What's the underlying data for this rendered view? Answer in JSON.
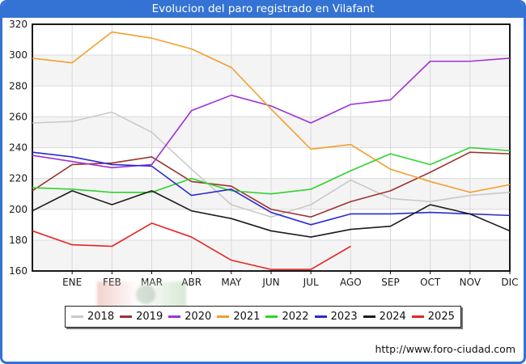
{
  "chart_data": {
    "type": "line",
    "title": "Evolucion del paro registrado en Vilafant",
    "xlabel": "",
    "ylabel": "",
    "ylim": [
      160,
      320
    ],
    "yticks": [
      320,
      300,
      280,
      260,
      240,
      220,
      200,
      180,
      160
    ],
    "categories": [
      "ENE",
      "FEB",
      "MAR",
      "ABR",
      "MAY",
      "JUN",
      "JUL",
      "AGO",
      "SEP",
      "OCT",
      "NOV",
      "DIC"
    ],
    "grid": true,
    "legend_position": "bottom",
    "band_fill_ranges": [
      [
        300,
        280
      ],
      [
        260,
        240
      ],
      [
        220,
        200
      ],
      [
        180,
        160
      ]
    ],
    "series": [
      {
        "name": "2018",
        "color": "#c9c9c9",
        "start_value": 256,
        "values": [
          257,
          263,
          250,
          226,
          203,
          195,
          203,
          219,
          207,
          205,
          209,
          211
        ]
      },
      {
        "name": "2019",
        "color": "#9e3232",
        "start_value": 212,
        "values": [
          229,
          230,
          234,
          218,
          215,
          200,
          195,
          205,
          212,
          224,
          237,
          236
        ]
      },
      {
        "name": "2020",
        "color": "#9d33d6",
        "start_value": 235,
        "values": [
          231,
          227,
          229,
          264,
          274,
          267,
          256,
          268,
          271,
          296,
          296,
          298
        ]
      },
      {
        "name": "2021",
        "color": "#f2a02e",
        "start_value": 298,
        "values": [
          295,
          315,
          311,
          304,
          292,
          265,
          239,
          242,
          226,
          218,
          211,
          216
        ]
      },
      {
        "name": "2022",
        "color": "#2fd32f",
        "start_value": 214,
        "values": [
          213,
          211,
          211,
          220,
          212,
          210,
          213,
          225,
          236,
          229,
          240,
          238
        ]
      },
      {
        "name": "2023",
        "color": "#2a2ad0",
        "start_value": 237,
        "values": [
          234,
          229,
          228,
          209,
          213,
          198,
          190,
          197,
          197,
          198,
          197,
          196
        ]
      },
      {
        "name": "2024",
        "color": "#1c1c1c",
        "start_value": 199,
        "values": [
          212,
          203,
          212,
          199,
          194,
          186,
          182,
          187,
          189,
          203,
          197,
          186
        ]
      },
      {
        "name": "2025",
        "color": "#e82525",
        "start_value": 186,
        "values": [
          177,
          176,
          191,
          182,
          167,
          161,
          161,
          176
        ]
      }
    ]
  },
  "footer": {
    "url": "http://www.foro-ciudad.com"
  }
}
